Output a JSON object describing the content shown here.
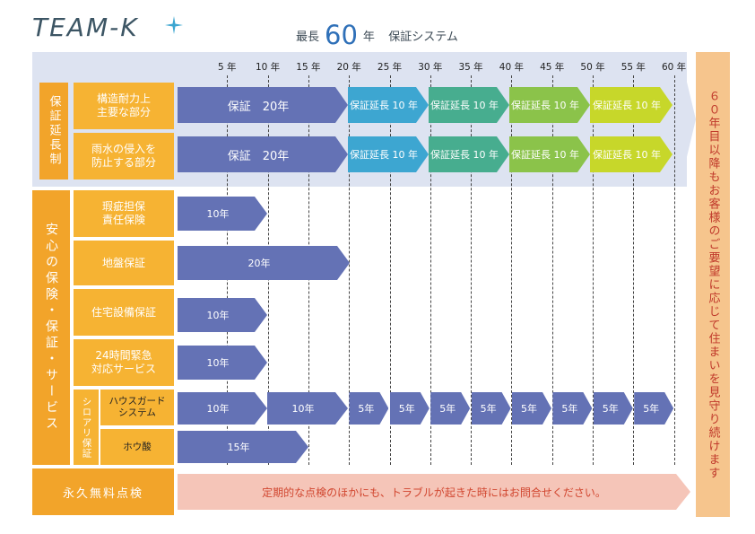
{
  "header": {
    "logo_text": "TEAM-K",
    "title_prefix": "最長",
    "title_number": "60",
    "title_suffix_year": "年",
    "title_suffix": "保証システム"
  },
  "timeline": {
    "ticks": [
      "5 年",
      "10 年",
      "15 年",
      "20 年",
      "25 年",
      "30 年",
      "35 年",
      "40 年",
      "45 年",
      "50 年",
      "55 年",
      "60 年"
    ]
  },
  "warranty_extension": {
    "group_label": "保証延長制",
    "rows": [
      {
        "label": "構造耐力上\n主要な部分",
        "base": "保証　20年",
        "extensions": [
          "保証延長 10 年",
          "保証延長 10 年",
          "保証延長 10 年",
          "保証延長 10 年"
        ]
      },
      {
        "label": "雨水の侵入を\n防止する部分",
        "base": "保証　20年",
        "extensions": [
          "保証延長 10 年",
          "保証延長 10 年",
          "保証延長 10 年",
          "保証延長 10 年"
        ]
      }
    ]
  },
  "insurance": {
    "group_label": "安心の保険・保証・サービス",
    "rows": [
      {
        "label": "瑕疵担保\n責任保険",
        "bar": "10年"
      },
      {
        "label": "地盤保証",
        "bar": "20年"
      },
      {
        "label": "住宅設備保証",
        "bar": "10年"
      },
      {
        "label": "24時間緊急\n対応サービス",
        "bar": "10年"
      }
    ],
    "termite": {
      "group_label": "シロアリ保証",
      "house_guard_label": "ハウスガード\nシステム",
      "house_guard_bars": [
        "10年",
        "10年",
        "5年",
        "5年",
        "5年",
        "5年",
        "5年",
        "5年",
        "5年",
        "5年"
      ],
      "boric_label": "ホウ酸",
      "boric_bar": "15年"
    }
  },
  "inspection": {
    "label": "永久無料点検",
    "message": "定期的な点検のほかにも、トラブルが起きた時にはお問合せください。"
  },
  "side_note": "６０年目以降もお客様のご要望に応じて住まいを見守り続けます",
  "colors": {
    "orange_dark": "#f2a42a",
    "orange_light": "#f6b333",
    "blue_arrow": "#6472b5",
    "band": "#dde3f1",
    "extension_1": "#3da6d1",
    "extension_2": "#47ad8f",
    "extension_3": "#8bc34a",
    "extension_4": "#c7d72a",
    "side_panel": "#f6c58d",
    "inspection_arrow": "#f5c5b8"
  }
}
